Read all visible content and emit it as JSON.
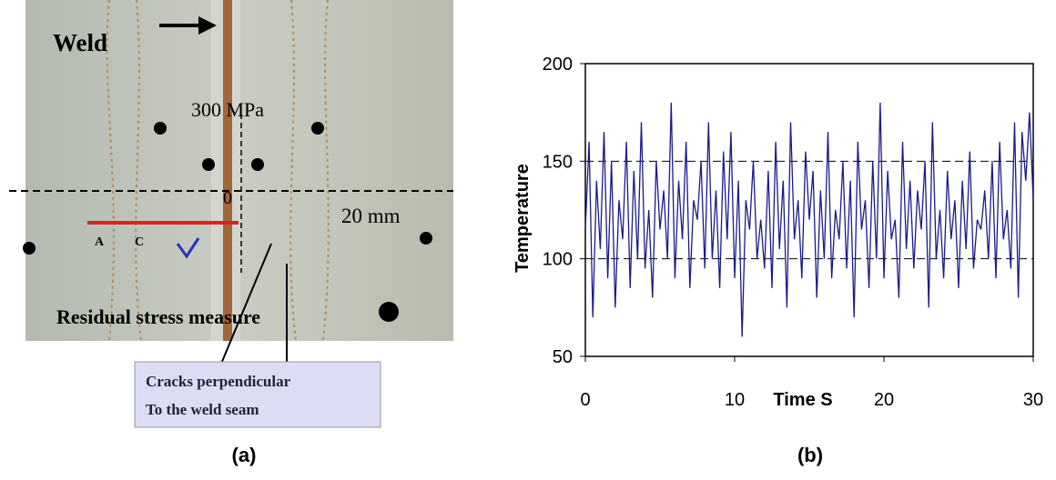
{
  "panel_a": {
    "weld": "Weld",
    "stress": "300 MPa",
    "origin": "0",
    "scale": "20 mm",
    "point_a": "A",
    "point_c": "C",
    "measure": "Residual stress measure",
    "callout": [
      "Cracks perpendicular",
      "To the weld seam"
    ],
    "label": "(a)"
  },
  "chart_data": {
    "type": "line",
    "x_label": "Time S",
    "y_label": "Temperature",
    "panel_label": "(b)",
    "color": "#1a1a8c",
    "grid": true,
    "xlim": [
      0,
      30
    ],
    "xticks": [
      0,
      10,
      20,
      30
    ],
    "ylim": [
      50,
      200
    ],
    "yticks": [
      50,
      100,
      150,
      200
    ],
    "x": [
      0,
      0.25,
      0.5,
      0.75,
      1,
      1.25,
      1.5,
      1.75,
      2,
      2.25,
      2.5,
      2.75,
      3,
      3.25,
      3.5,
      3.75,
      4,
      4.25,
      4.5,
      4.75,
      5,
      5.25,
      5.5,
      5.75,
      6,
      6.25,
      6.5,
      6.75,
      7,
      7.25,
      7.5,
      7.75,
      8,
      8.25,
      8.5,
      8.75,
      9,
      9.25,
      9.5,
      9.75,
      10,
      10.25,
      10.5,
      10.75,
      11,
      11.25,
      11.5,
      11.75,
      12,
      12.25,
      12.5,
      12.75,
      13,
      13.25,
      13.5,
      13.75,
      14,
      14.25,
      14.5,
      14.75,
      15,
      15.25,
      15.5,
      15.75,
      16,
      16.25,
      16.5,
      16.75,
      17,
      17.25,
      17.5,
      17.75,
      18,
      18.25,
      18.5,
      18.75,
      19,
      19.25,
      19.5,
      19.75,
      20,
      20.25,
      20.5,
      20.75,
      21,
      21.25,
      21.5,
      21.75,
      22,
      22.25,
      22.5,
      22.75,
      23,
      23.25,
      23.5,
      23.75,
      24,
      24.25,
      24.5,
      24.75,
      25,
      25.25,
      25.5,
      25.75,
      26,
      26.25,
      26.5,
      26.75,
      27,
      27.25,
      27.5,
      27.75,
      28,
      28.25,
      28.5,
      28.75,
      29,
      29.25,
      29.5,
      29.75,
      30
    ],
    "values": [
      115,
      160,
      70,
      140,
      105,
      165,
      90,
      150,
      75,
      130,
      110,
      160,
      85,
      145,
      100,
      170,
      95,
      125,
      80,
      150,
      115,
      135,
      100,
      180,
      90,
      140,
      110,
      160,
      85,
      130,
      120,
      150,
      95,
      170,
      100,
      135,
      85,
      155,
      110,
      165,
      90,
      140,
      60,
      130,
      115,
      150,
      100,
      120,
      95,
      145,
      85,
      160,
      105,
      140,
      75,
      170,
      110,
      130,
      90,
      155,
      120,
      145,
      80,
      135,
      100,
      165,
      90,
      125,
      110,
      150,
      95,
      140,
      70,
      160,
      115,
      130,
      85,
      150,
      100,
      180,
      90,
      145,
      110,
      120,
      80,
      160,
      105,
      140,
      95,
      135,
      115,
      150,
      75,
      170,
      100,
      125,
      90,
      145,
      110,
      130,
      85,
      140,
      105,
      155,
      95,
      120,
      115,
      135,
      100,
      150,
      90,
      160,
      110,
      125,
      95,
      170,
      80,
      165,
      140,
      175,
      130
    ]
  }
}
